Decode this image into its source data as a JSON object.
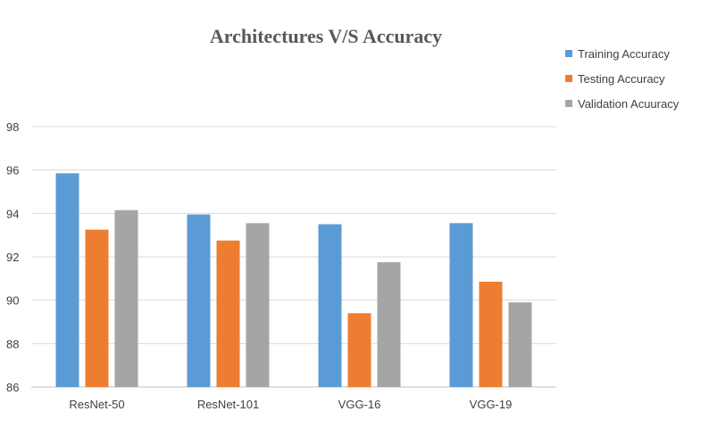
{
  "chart_data": {
    "type": "bar",
    "title": "Architectures V/S Accuracy",
    "categories": [
      "ResNet-50",
      "ResNet-101",
      "VGG-16",
      "VGG-19"
    ],
    "series": [
      {
        "name": "Training Accuracy",
        "color": "#5B9BD5",
        "values": [
          95.85,
          93.95,
          93.5,
          93.55
        ]
      },
      {
        "name": "Testing Accuracy",
        "color": "#ED7D31",
        "values": [
          93.25,
          92.75,
          89.4,
          90.85
        ]
      },
      {
        "name": "Validation Acuuracy",
        "color": "#A5A5A5",
        "values": [
          94.15,
          93.55,
          91.75,
          89.9
        ]
      }
    ],
    "ylim": [
      86,
      98
    ],
    "yticks": [
      "86",
      "88",
      "90",
      "92",
      "94",
      "96",
      "98"
    ],
    "grid": true,
    "legend": "top-right"
  }
}
